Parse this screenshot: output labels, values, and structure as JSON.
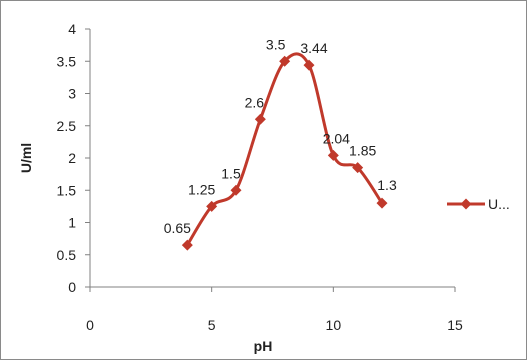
{
  "chart_data": {
    "type": "line",
    "xlabel": "pH",
    "ylabel": "U/ml",
    "xlim": [
      0,
      15
    ],
    "ylim": [
      0,
      4
    ],
    "x_ticks": [
      0,
      5,
      10,
      15
    ],
    "y_ticks": [
      0,
      0.5,
      1,
      1.5,
      2,
      2.5,
      3,
      3.5,
      4
    ],
    "grid": false,
    "legend_position": "right",
    "smooth": true,
    "marker": "diamond",
    "color": "#c0392b",
    "series": [
      {
        "name": "U...",
        "x": [
          4,
          5,
          6,
          7,
          8,
          9,
          10,
          11,
          12
        ],
        "y": [
          0.65,
          1.25,
          1.5,
          2.6,
          3.5,
          3.44,
          2.04,
          1.85,
          1.3
        ],
        "labels": [
          "0.65",
          "1.25",
          "1.5",
          "2.6",
          "3.5",
          "3.44",
          "2.04",
          "1.85",
          "1.3"
        ]
      }
    ]
  }
}
